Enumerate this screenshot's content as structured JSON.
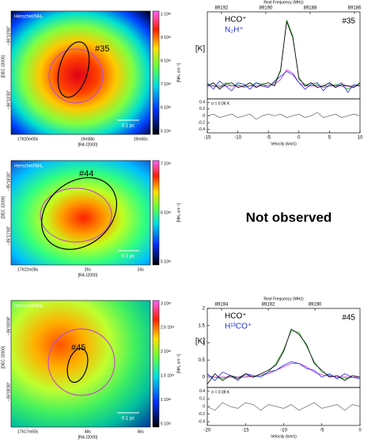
{
  "maps": [
    {
      "title": "Herschel/NH₂",
      "label": "#35",
      "scale": "0.1 pc",
      "xlabel": "[RA J2000]",
      "ylabel": "[DEC J2000]",
      "cbar_label": "[NH₂ cm⁻²]",
      "xticks": [
        "17h20m00s",
        "19m58s",
        "19m56s"
      ],
      "yticks": [
        "−36°13'00\"",
        "−36°13'30\""
      ],
      "cbar_ticks": [
        "1 10²³",
        "9 10²²",
        "8 10²²",
        "7 10²²",
        "6 10²²",
        "5 10²²"
      ]
    },
    {
      "title": "Herschel/NH₂",
      "label": "#44",
      "scale": "0.1 pc",
      "xlabel": "[RA J2000]",
      "ylabel": "[DEC J2000]",
      "cbar_label": "[NH₂ cm⁻²]",
      "xticks": [
        "17h22m28s",
        "26s",
        "24s"
      ],
      "yticks": [
        "−35°16'30\"",
        "−35°17'00\""
      ],
      "cbar_ticks": [
        "7 10²²",
        "6 10²²",
        "5 10²²"
      ]
    },
    {
      "title": "Herschel/NH₂",
      "label": "#45",
      "scale": "0.1 pc",
      "xlabel": "[RA J2000]",
      "ylabel": "[DEC J2000]",
      "cbar_label": "[NH₂ cm⁻²]",
      "xticks": [
        "17h17m50s",
        "48s",
        "46s"
      ],
      "yticks": [
        "−36°09'00\"",
        "−36°09'30\""
      ],
      "cbar_ticks": [
        "3 10²³",
        "2.5 10²³",
        "2 10²³",
        "1.5 10²³",
        "1 10²³",
        "5 10²²"
      ]
    }
  ],
  "not_observed": "Not observed",
  "chart_data": [
    {
      "type": "line",
      "xlabel": "Velocity (km/s)",
      "ylabel": "[K]",
      "x2label": "Rest Frequency (MHz)",
      "annotation": "#35",
      "sigma": "σ = 0.06 K",
      "xlim": [
        -15,
        10
      ],
      "xticks": [
        -15,
        -10,
        -5,
        0,
        5,
        10
      ],
      "ylim": [
        -0.4,
        2.3
      ],
      "x2lim": [
        89192.64,
        89185.75
      ],
      "x2ticks": [
        89192,
        89190,
        89188,
        89186
      ],
      "x": [
        -15,
        -14,
        -13,
        -12,
        -11,
        -10,
        -9,
        -8,
        -7,
        -6,
        -5,
        -4,
        -3,
        -2,
        -1,
        0,
        1,
        2,
        3,
        4,
        5,
        6,
        7,
        8,
        9,
        10
      ],
      "series": [
        {
          "color": "#20a020",
          "values": [
            0.05,
            0,
            -0.05,
            0.1,
            0,
            0.05,
            -0.05,
            0,
            0.1,
            0.05,
            0,
            0.1,
            0.45,
            2.05,
            1.55,
            0.2,
            0.05,
            0,
            0.05,
            -0.05,
            0,
            0.05,
            0,
            -0.1,
            0,
            0.05
          ]
        },
        {
          "color": "#d020d0",
          "values": [
            0,
            0,
            0,
            0,
            0,
            0,
            0,
            0,
            0,
            0,
            0,
            0.05,
            0.2,
            0.5,
            0.4,
            0.1,
            0,
            0,
            0,
            0,
            0,
            0,
            0,
            0,
            0,
            0
          ]
        },
        {
          "name": "N₂H⁺",
          "color": "#2030e0",
          "values": [
            0.1,
            -0.1,
            0.15,
            0,
            -0.15,
            0.1,
            0.05,
            -0.1,
            0.1,
            0,
            -0.05,
            0.15,
            0.3,
            0.45,
            0.35,
            0.1,
            -0.1,
            0.05,
            0.1,
            -0.15,
            0.05,
            0,
            0.1,
            -0.2,
            0.05,
            0
          ]
        },
        {
          "name": "HCO⁺",
          "color": "#000000",
          "values": [
            0,
            0.1,
            -0.1,
            0.05,
            0.1,
            -0.05,
            0,
            0.1,
            -0.05,
            0.05,
            0.1,
            0,
            0.5,
            2.0,
            1.5,
            0.25,
            0,
            0.1,
            -0.05,
            0,
            0.1,
            -0.05,
            0.05,
            0,
            -0.05,
            0.1
          ]
        }
      ],
      "residual": {
        "color": "#777777",
        "ylim": [
          -0.5,
          0.5
        ],
        "yticks": [
          0.4,
          0.2,
          0,
          -0.2,
          -0.4
        ],
        "values": [
          0,
          0.05,
          -0.05,
          0,
          0.05,
          -0.05,
          0,
          0.05,
          -0.1,
          0,
          0.05,
          0,
          0.05,
          -0.05,
          0,
          0.05,
          -0.05,
          0,
          0.1,
          -0.05,
          0,
          0.05,
          -0.05,
          0,
          0.05,
          0
        ]
      }
    },
    {
      "type": "line",
      "xlabel": "Velocity (km/s)",
      "ylabel": "[K]",
      "x2label": "Rest Frequency (MHz)",
      "annotation": "#45",
      "sigma": "σ = 0.08 K",
      "xlim": [
        -20,
        0
      ],
      "xticks": [
        -20,
        -15,
        -10,
        -5,
        0
      ],
      "ylim": [
        -0.3,
        2
      ],
      "yticks": [
        0,
        0.5,
        1,
        1.5,
        2
      ],
      "x2lim": [
        89194.61,
        89188.07
      ],
      "x2ticks": [
        89194,
        89192,
        89190
      ],
      "x": [
        -20,
        -19,
        -18,
        -17,
        -16,
        -15,
        -14,
        -13,
        -12,
        -11,
        -10,
        -9,
        -8,
        -7,
        -6,
        -5,
        -4,
        -3,
        -2,
        -1,
        0
      ],
      "series": [
        {
          "color": "#20a020",
          "values": [
            0.05,
            0,
            -0.05,
            0.05,
            0,
            0.05,
            0,
            0.05,
            0.15,
            0.4,
            0.8,
            1.35,
            1.3,
            0.9,
            0.45,
            0.15,
            0.05,
            0,
            -0.05,
            0,
            0
          ]
        },
        {
          "color": "#d020d0",
          "values": [
            0,
            0,
            0,
            0,
            0,
            0,
            0.02,
            0.05,
            0.1,
            0.2,
            0.3,
            0.4,
            0.4,
            0.3,
            0.15,
            0.07,
            0.03,
            0,
            0,
            0,
            0
          ]
        },
        {
          "name": "H¹³CO⁺",
          "color": "#2030e0",
          "values": [
            0.1,
            -0.1,
            0.15,
            0.05,
            -0.1,
            0.1,
            0.05,
            0,
            0.15,
            0.2,
            0.35,
            0.45,
            0.4,
            0.25,
            0.2,
            0,
            0.1,
            -0.05,
            0.1,
            0,
            -0.05
          ]
        },
        {
          "name": "HCO⁺",
          "color": "#000000",
          "values": [
            -0.2,
            0.1,
            -0.1,
            0.05,
            -0.05,
            0.1,
            0,
            0.1,
            0.2,
            0.35,
            0.75,
            1.4,
            1.25,
            0.95,
            0.4,
            0.2,
            0,
            0.05,
            -0.1,
            0.05,
            0
          ]
        }
      ],
      "residual": {
        "color": "#777777",
        "ylim": [
          -0.5,
          0.5
        ],
        "yticks": [
          0.4,
          0.2,
          0,
          -0.2,
          -0.4
        ],
        "values": [
          0,
          -0.1,
          0.1,
          0,
          -0.05,
          0.1,
          0.05,
          -0.1,
          0.05,
          0,
          -0.05,
          0.05,
          -0.1,
          0,
          0.1,
          -0.05,
          0,
          0.05,
          -0.1,
          0.05,
          0
        ]
      }
    }
  ]
}
